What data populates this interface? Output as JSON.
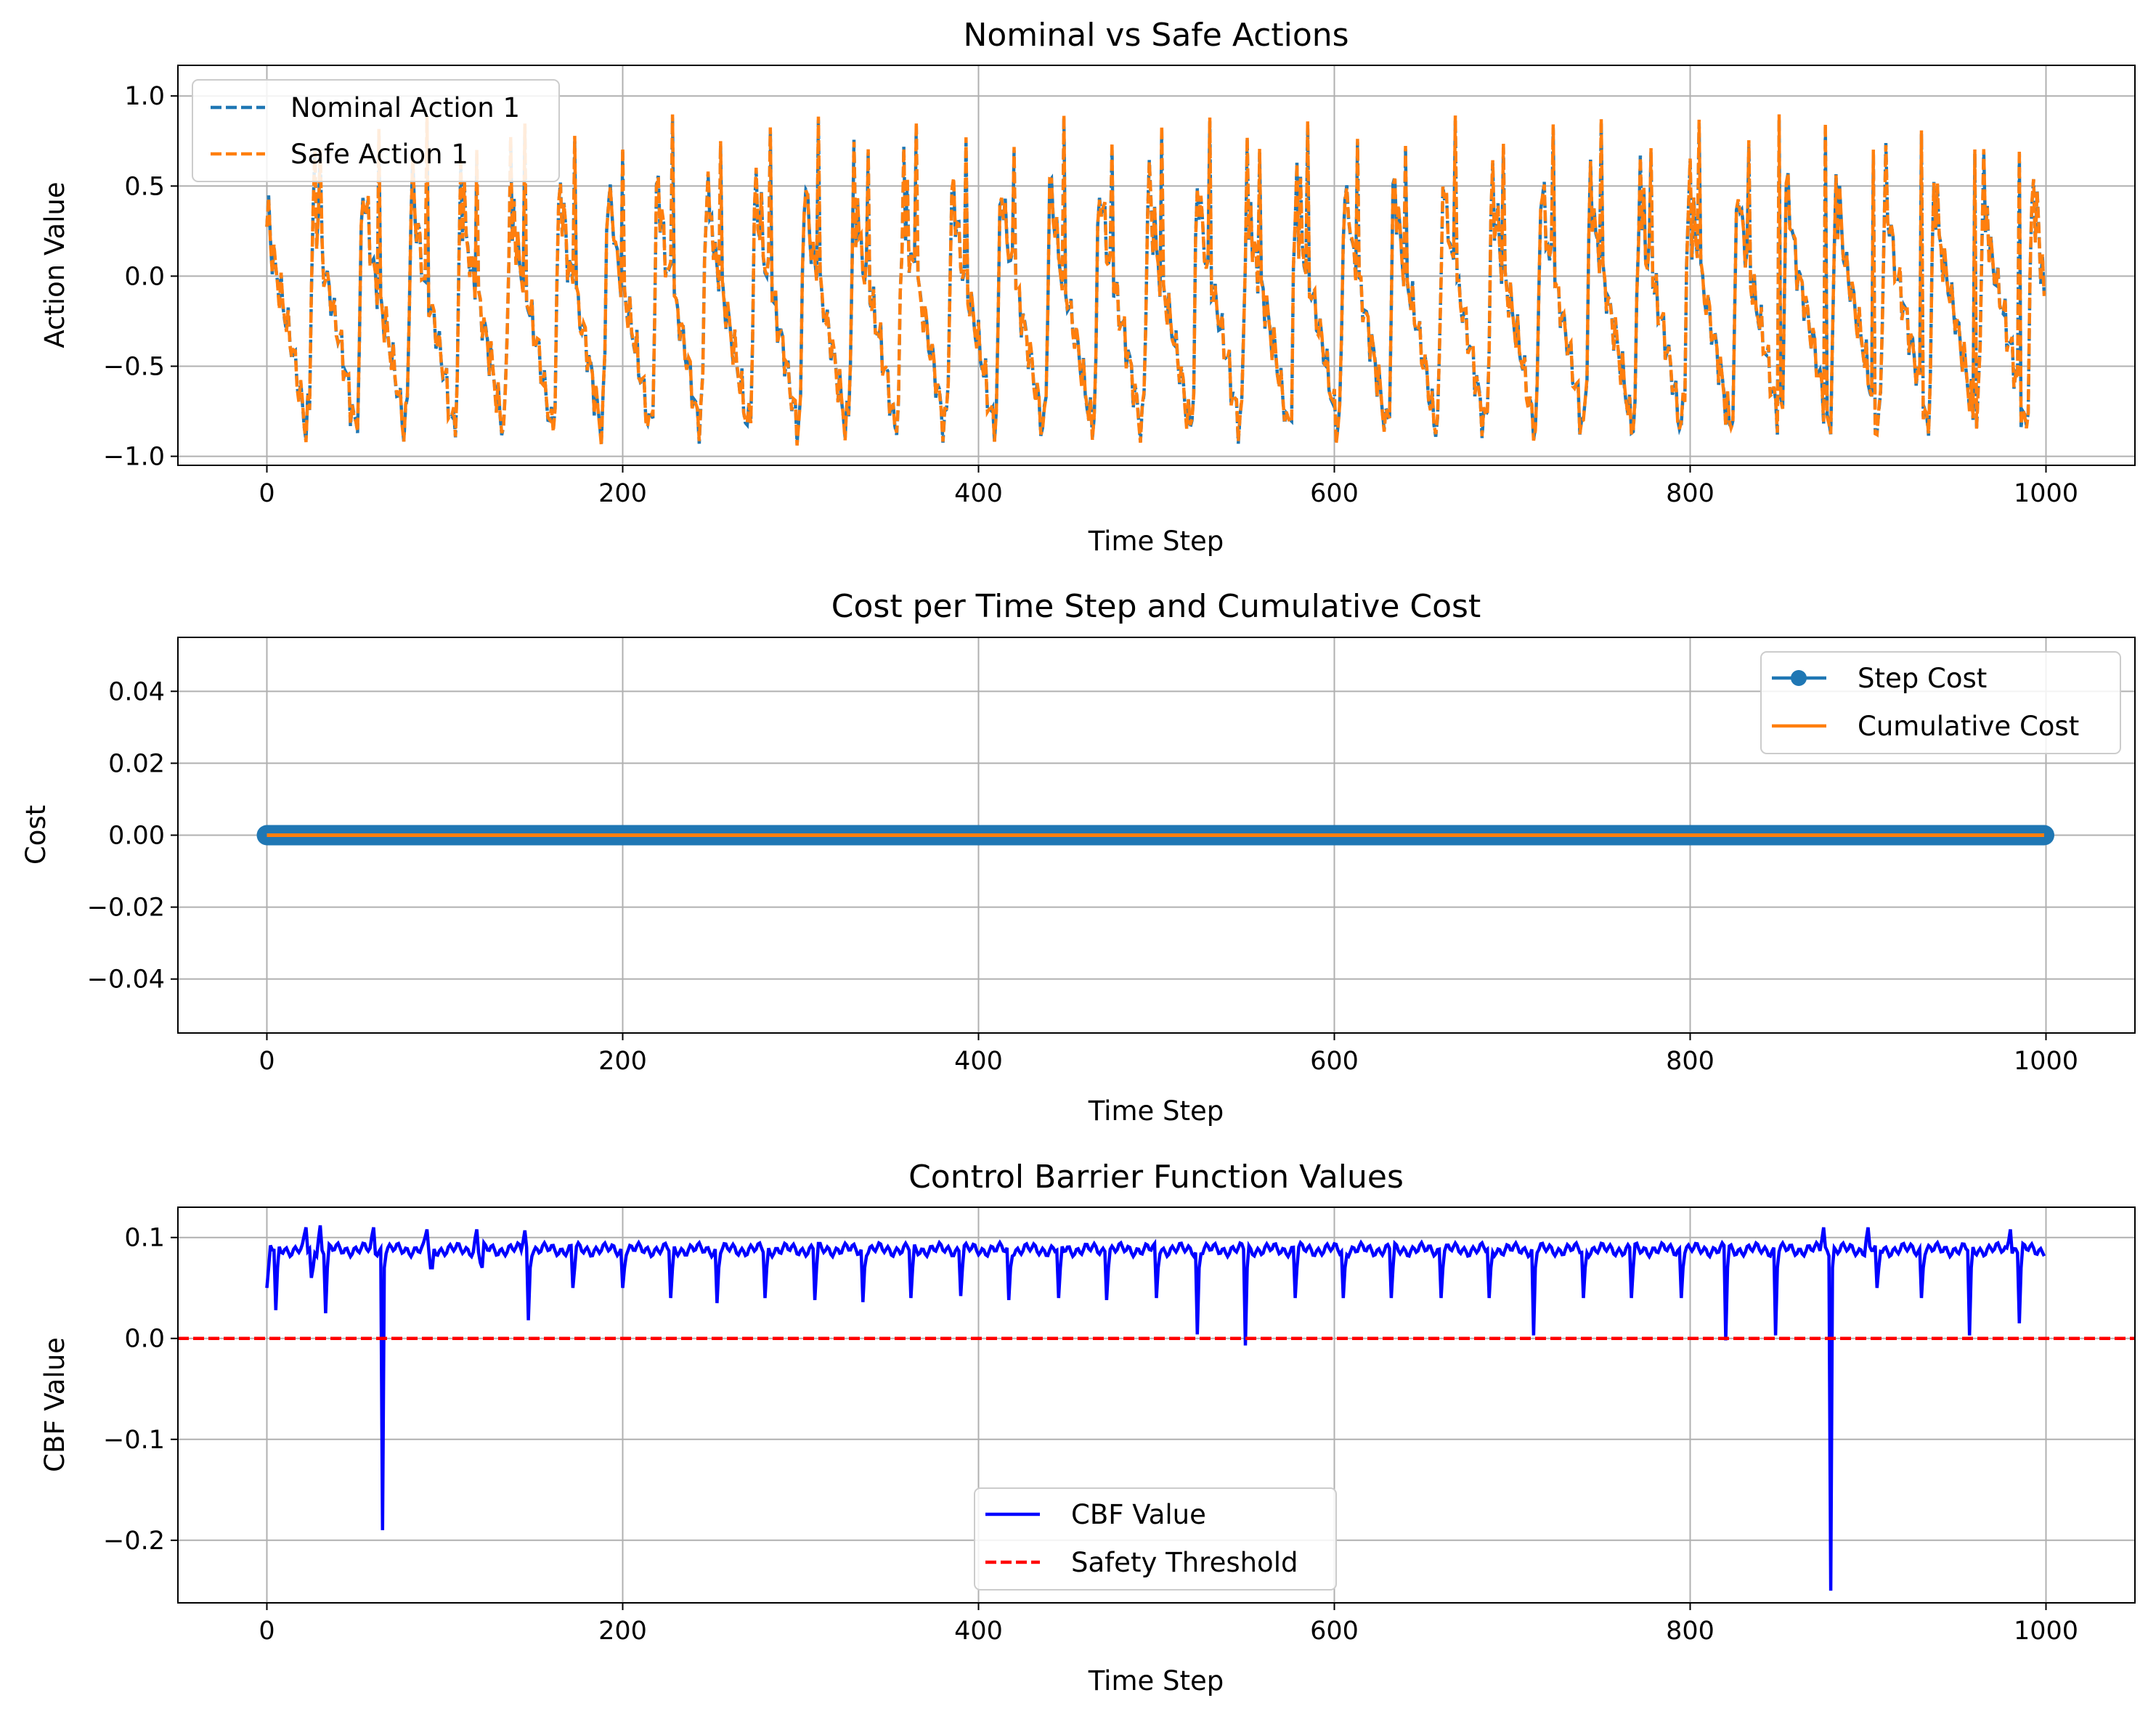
{
  "chart_data": [
    {
      "type": "line",
      "title": "Nominal vs Safe Actions",
      "xlabel": "Time Step",
      "ylabel": "Action Value",
      "xlim": [
        -50,
        1050
      ],
      "ylim": [
        -1.05,
        1.17
      ],
      "xticks": [
        0,
        200,
        400,
        600,
        800,
        1000
      ],
      "yticks": [
        -1.0,
        -0.5,
        0.0,
        0.5,
        1.0
      ],
      "xtick_labels": [
        "0",
        "200",
        "400",
        "600",
        "800",
        "1000"
      ],
      "ytick_labels": [
        "−1.0",
        "−0.5",
        "0.0",
        "0.5",
        "1.0"
      ],
      "grid": true,
      "legend_position": "upper-left",
      "series": [
        {
          "name": "Nominal Action 1",
          "color": "#1f77b4",
          "style": "dashed"
        },
        {
          "name": "Safe Action 1",
          "color": "#ff7f0e",
          "style": "dashed"
        }
      ],
      "signal": {
        "x_range": [
          0,
          999
        ],
        "period": 27.6,
        "keyframes": [
          [
            0,
            0.25
          ],
          [
            0.03,
            0.38
          ],
          [
            0.12,
            0.1
          ],
          [
            0.3,
            -0.12
          ],
          [
            0.55,
            -0.45
          ],
          [
            0.8,
            -0.85
          ],
          [
            0.87,
            -0.7
          ],
          [
            0.92,
            0.2
          ],
          [
            0.97,
            0.65
          ],
          [
            1.0,
            0.25
          ]
        ],
        "peak_x": [
          30,
          63,
          90,
          118,
          145,
          173,
          200,
          228,
          255,
          283,
          310,
          338,
          365,
          393,
          420,
          448,
          475,
          503,
          530,
          558,
          585,
          613,
          640,
          668,
          695,
          723,
          750,
          778,
          805,
          833,
          850,
          876,
          903,
          930,
          960,
          985
        ],
        "min_value": -0.93,
        "max_value": 1.04,
        "end_value": -0.1
      }
    },
    {
      "type": "line",
      "title": "Cost per Time Step and Cumulative Cost",
      "xlabel": "Time Step",
      "ylabel": "Cost",
      "xlim": [
        -50,
        1050
      ],
      "ylim": [
        -0.055,
        0.055
      ],
      "xticks": [
        0,
        200,
        400,
        600,
        800,
        1000
      ],
      "yticks": [
        -0.04,
        -0.02,
        0.0,
        0.02,
        0.04
      ],
      "xtick_labels": [
        "0",
        "200",
        "400",
        "600",
        "800",
        "1000"
      ],
      "ytick_labels": [
        "−0.04",
        "−0.02",
        "0.00",
        "0.02",
        "0.04"
      ],
      "grid": true,
      "legend_position": "upper-right",
      "series": [
        {
          "name": "Step Cost",
          "color": "#1f77b4",
          "style": "solid",
          "marker": "circle",
          "x_range": [
            0,
            999
          ],
          "constant_value": 0.0
        },
        {
          "name": "Cumulative Cost",
          "color": "#ff7f0e",
          "style": "solid",
          "x_range": [
            0,
            999
          ],
          "constant_value": 0.0
        }
      ]
    },
    {
      "type": "line",
      "title": "Control Barrier Function Values",
      "xlabel": "Time Step",
      "ylabel": "CBF Value",
      "xlim": [
        -50,
        1050
      ],
      "ylim": [
        -0.262,
        0.13
      ],
      "xticks": [
        0,
        200,
        400,
        600,
        800,
        1000
      ],
      "yticks": [
        -0.2,
        -0.1,
        0.0,
        0.1
      ],
      "xtick_labels": [
        "0",
        "200",
        "400",
        "600",
        "800",
        "1000"
      ],
      "ytick_labels": [
        "−0.2",
        "−0.1",
        "0.0",
        "0.1"
      ],
      "grid": true,
      "legend_position": "lower-center",
      "series": [
        {
          "name": "CBF Value",
          "color": "#0000ff",
          "style": "solid",
          "x_range": [
            0,
            999
          ],
          "baseline": 0.088,
          "start_value": 0.05
        },
        {
          "name": "Safety Threshold",
          "color": "#ff0000",
          "style": "dashed",
          "y": 0.0
        }
      ],
      "dips": [
        [
          5,
          0.028
        ],
        [
          25,
          0.06
        ],
        [
          33,
          0.025
        ],
        [
          65,
          -0.19
        ],
        [
          92,
          0.07
        ],
        [
          120,
          0.075
        ],
        [
          147,
          0.018
        ],
        [
          172,
          0.05
        ],
        [
          200,
          0.05
        ],
        [
          227,
          0.04
        ],
        [
          253,
          0.035
        ],
        [
          280,
          0.04
        ],
        [
          308,
          0.038
        ],
        [
          335,
          0.036
        ],
        [
          362,
          0.04
        ],
        [
          390,
          0.042
        ],
        [
          417,
          0.038
        ],
        [
          445,
          0.04
        ],
        [
          472,
          0.038
        ],
        [
          500,
          0.04
        ],
        [
          523,
          0.004
        ],
        [
          550,
          -0.007
        ],
        [
          578,
          0.04
        ],
        [
          605,
          0.04
        ],
        [
          632,
          0.04
        ],
        [
          660,
          0.04
        ],
        [
          687,
          0.04
        ],
        [
          712,
          0.003
        ],
        [
          740,
          0.04
        ],
        [
          767,
          0.04
        ],
        [
          795,
          0.04
        ],
        [
          820,
          -0.002
        ],
        [
          848,
          0.003
        ],
        [
          879,
          -0.25
        ],
        [
          905,
          0.05
        ],
        [
          930,
          0.04
        ],
        [
          957,
          0.003
        ],
        [
          985,
          0.015
        ]
      ],
      "peaks": [
        [
          22,
          0.11
        ],
        [
          30,
          0.112
        ],
        [
          60,
          0.11
        ],
        [
          90,
          0.108
        ],
        [
          118,
          0.108
        ],
        [
          145,
          0.107
        ],
        [
          875,
          0.11
        ],
        [
          900,
          0.11
        ],
        [
          980,
          0.108
        ]
      ]
    }
  ]
}
